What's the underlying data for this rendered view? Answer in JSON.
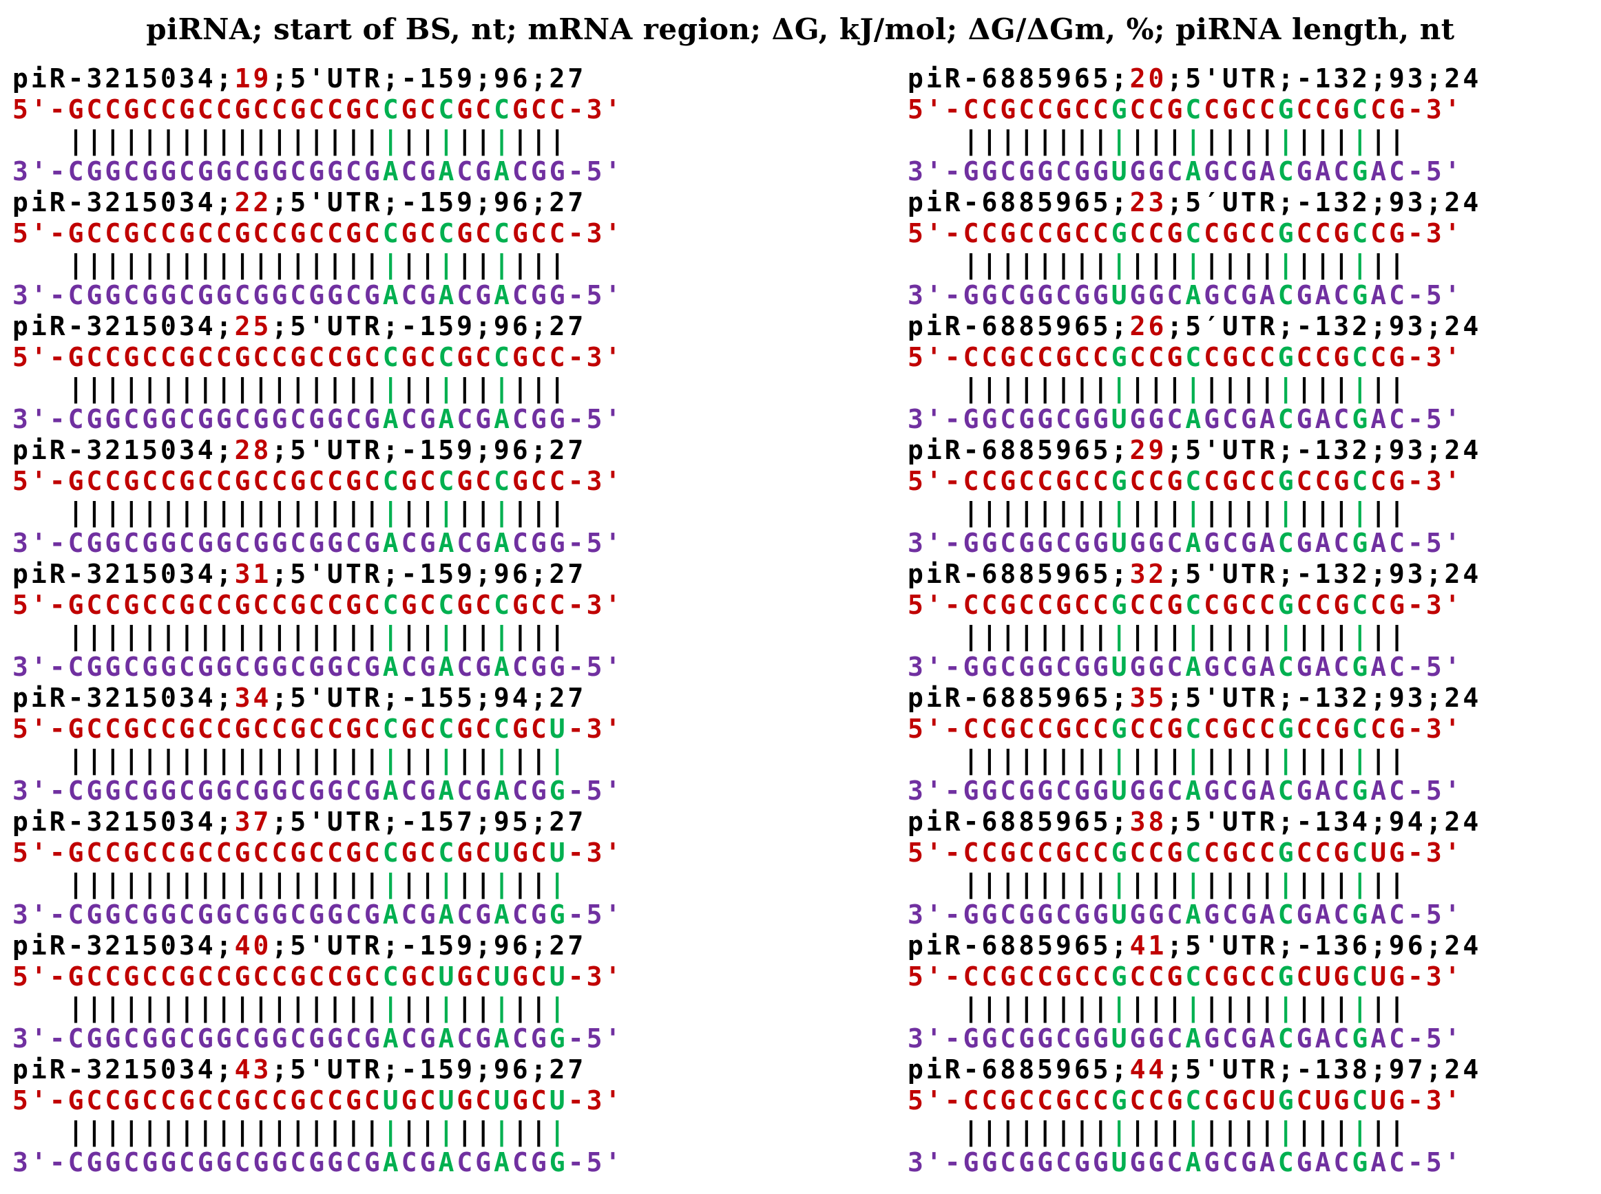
{
  "title": "piRNA; start of BS, nt; mRNA region; ΔG, kJ/mol; ΔG/ΔGm, %; piRNA length, nt",
  "colors": {
    "start_position": "#c00000",
    "mrna_strand": "#c00000",
    "pirna_strand": "#7030a0",
    "highlight": "#00b050",
    "text": "#000000"
  },
  "columns": [
    {
      "blocks": [
        {
          "name": "piR-3215034",
          "start": "19",
          "rest": ";5'UTR;-159;96;27",
          "mrna": "5'-GCCGCCGCCGCCGCCGCCGCCGCCGCC-3'",
          "bars": "|||||||||||||||||||||||||||",
          "pirna": "3'-CGGCGGCGGCGGCGGCGACGACGACGG-5'"
        },
        {
          "name": "piR-3215034",
          "start": "22",
          "rest": ";5'UTR;-159;96;27",
          "mrna": "5'-GCCGCCGCCGCCGCCGCCGCCGCCGCC-3'",
          "bars": "|||||||||||||||||||||||||||",
          "pirna": "3'-CGGCGGCGGCGGCGGCGACGACGACGG-5'"
        },
        {
          "name": "piR-3215034",
          "start": "25",
          "rest": ";5'UTR;-159;96;27",
          "mrna": "5'-GCCGCCGCCGCCGCCGCCGCCGCCGCC-3'",
          "bars": "|||||||||||||||||||||||||||",
          "pirna": "3'-CGGCGGCGGCGGCGGCGACGACGACGG-5'"
        },
        {
          "name": "piR-3215034",
          "start": "28",
          "rest": ";5'UTR;-159;96;27",
          "mrna": "5'-GCCGCCGCCGCCGCCGCCGCCGCCGCC-3'",
          "bars": "|||||||||||||||||||||||||||",
          "pirna": "3'-CGGCGGCGGCGGCGGCGACGACGACGG-5'"
        },
        {
          "name": "piR-3215034",
          "start": "31",
          "rest": ";5'UTR;-159;96;27",
          "mrna": "5'-GCCGCCGCCGCCGCCGCCGCCGCCGCC-3'",
          "bars": "|||||||||||||||||||||||||||",
          "pirna": "3'-CGGCGGCGGCGGCGGCGACGACGACGG-5'"
        },
        {
          "name": "piR-3215034",
          "start": "34",
          "rest": ";5'UTR;-155;94;27",
          "mrna": "5'-GCCGCCGCCGCCGCCGCCGCCGCCGCU-3'",
          "bars": "|||||||||||||||||||||||||||",
          "pirna": "3'-CGGCGGCGGCGGCGGCGACGACGACGG-5'"
        },
        {
          "name": "piR-3215034",
          "start": "37",
          "rest": ";5'UTR;-157;95;27",
          "mrna": "5'-GCCGCCGCCGCCGCCGCCGCCGCUGCU-3'",
          "bars": "|||||||||||||||||||||||||||",
          "pirna": "3'-CGGCGGCGGCGGCGGCGACGACGACGG-5'"
        },
        {
          "name": "piR-3215034",
          "start": "40",
          "rest": ";5'UTR;-159;96;27",
          "mrna": "5'-GCCGCCGCCGCCGCCGCCGCUGCUGCU-3'",
          "bars": "|||||||||||||||||||||||||||",
          "pirna": "3'-CGGCGGCGGCGGCGGCGACGACGACGG-5'"
        },
        {
          "name": "piR-3215034",
          "start": "43",
          "rest": ";5'UTR;-159;96;27",
          "mrna": "5'-GCCGCCGCCGCCGCCGCUGCUGCUGCU-3'",
          "bars": "|||||||||||||||||||||||||||",
          "pirna": "3'-CGGCGGCGGCGGCGGCGACGACGACGG-5'"
        }
      ]
    },
    {
      "blocks": [
        {
          "name": "piR-6885965",
          "start": "20",
          "rest": ";5'UTR;-132;93;24",
          "mrna": "5'-CCGCCGCCGCCGCCGCCGCCGCCG-3'",
          "bars": "||||||||||||||||||||||||",
          "pirna": "3'-GGCGGCGGUGGCAGCGACGACGAC-5'"
        },
        {
          "name": "piR-6885965",
          "start": "23",
          "rest": ";5′UTR;-132;93;24",
          "mrna": "5'-CCGCCGCCGCCGCCGCCGCCGCCG-3'",
          "bars": "||||||||||||||||||||||||",
          "pirna": "3'-GGCGGCGGUGGCAGCGACGACGAC-5'"
        },
        {
          "name": "piR-6885965",
          "start": "26",
          "rest": ";5′UTR;-132;93;24",
          "mrna": "5'-CCGCCGCCGCCGCCGCCGCCGCCG-3'",
          "bars": "||||||||||||||||||||||||",
          "pirna": "3'-GGCGGCGGUGGCAGCGACGACGAC-5'"
        },
        {
          "name": "piR-6885965",
          "start": "29",
          "rest": ";5'UTR;-132;93;24",
          "mrna": "5'-CCGCCGCCGCCGCCGCCGCCGCCG-3'",
          "bars": "||||||||||||||||||||||||",
          "pirna": "3'-GGCGGCGGUGGCAGCGACGACGAC-5'"
        },
        {
          "name": "piR-6885965",
          "start": "32",
          "rest": ";5'UTR;-132;93;24",
          "mrna": "5'-CCGCCGCCGCCGCCGCCGCCGCCG-3'",
          "bars": "||||||||||||||||||||||||",
          "pirna": "3'-GGCGGCGGUGGCAGCGACGACGAC-5'"
        },
        {
          "name": "piR-6885965",
          "start": "35",
          "rest": ";5'UTR;-132;93;24",
          "mrna": "5'-CCGCCGCCGCCGCCGCCGCCGCCG-3'",
          "bars": "||||||||||||||||||||||||",
          "pirna": "3'-GGCGGCGGUGGCAGCGACGACGAC-5'"
        },
        {
          "name": "piR-6885965",
          "start": "38",
          "rest": ";5'UTR;-134;94;24",
          "mrna": "5'-CCGCCGCCGCCGCCGCCGCCGCUG-3'",
          "bars": "||||||||||||||||||||||||",
          "pirna": "3'-GGCGGCGGUGGCAGCGACGACGAC-5'"
        },
        {
          "name": "piR-6885965",
          "start": "41",
          "rest": ";5'UTR;-136;96;24",
          "mrna": "5'-CCGCCGCCGCCGCCGCCGCUGCUG-3'",
          "bars": "||||||||||||||||||||||||",
          "pirna": "3'-GGCGGCGGUGGCAGCGACGACGAC-5'"
        },
        {
          "name": "piR-6885965",
          "start": "44",
          "rest": ";5'UTR;-138;97;24",
          "mrna": "5'-CCGCCGCCGCCGCCGCUGCUGCUG-3'",
          "bars": "||||||||||||||||||||||||",
          "pirna": "3'-GGCGGCGGUGGCAGCGACGACGAC-5'"
        }
      ]
    }
  ]
}
